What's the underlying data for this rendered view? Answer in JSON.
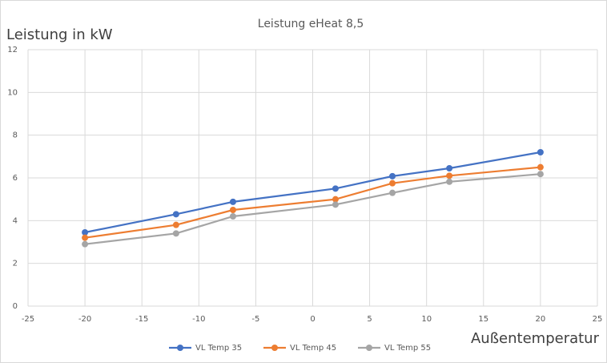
{
  "chart_data": {
    "type": "line",
    "title": "Leistung eHeat 8,5",
    "y_label": "Leistung in kW",
    "x_label": "Außentemperatur",
    "x": [
      -20,
      -12,
      -7,
      2,
      7,
      12,
      20
    ],
    "series": [
      {
        "name": "VL Temp 35",
        "color": "#4472c4",
        "values": [
          3.45,
          4.3,
          4.88,
          5.5,
          6.08,
          6.45,
          7.2
        ]
      },
      {
        "name": "VL Temp 45",
        "color": "#ed7d31",
        "values": [
          3.2,
          3.8,
          4.5,
          5.0,
          5.75,
          6.1,
          6.5
        ]
      },
      {
        "name": "VL Temp 55",
        "color": "#a5a5a5",
        "values": [
          2.9,
          3.4,
          4.2,
          4.75,
          5.3,
          5.82,
          6.18
        ]
      }
    ],
    "xlim": [
      -25,
      25
    ],
    "xticks": [
      -25,
      -20,
      -15,
      -10,
      -5,
      0,
      5,
      10,
      15,
      20,
      25
    ],
    "ylim": [
      0,
      12
    ],
    "yticks": [
      0,
      2,
      4,
      6,
      8,
      10,
      12
    ],
    "grid": true,
    "legend": "bottom"
  }
}
